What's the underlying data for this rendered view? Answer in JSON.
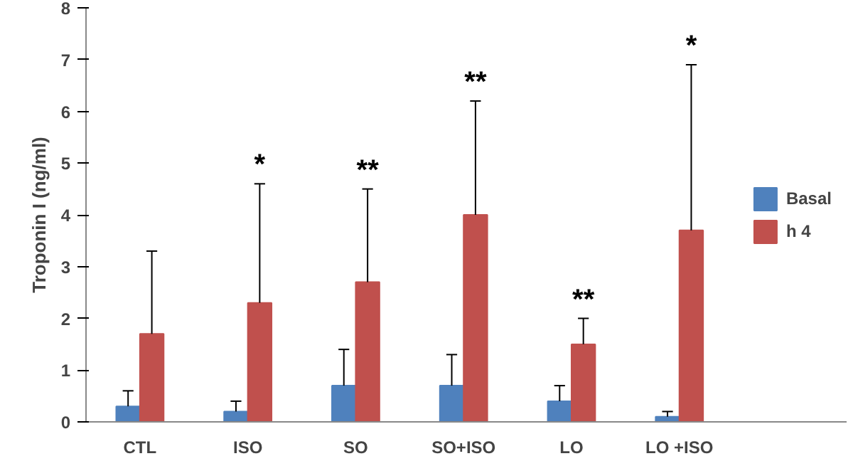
{
  "chart_data": {
    "type": "bar",
    "ylabel": "Troponin I (ng/ml)",
    "categories": [
      "CTL",
      "ISO",
      "SO",
      "SO+ISO",
      "LO",
      "LO +ISO"
    ],
    "series": [
      {
        "name": "Basal",
        "color": "#4f81bd",
        "values": [
          0.3,
          0.2,
          0.7,
          0.7,
          0.4,
          0.1
        ],
        "errors": [
          [
            0.3,
            0.6
          ],
          [
            0.2,
            0.4
          ],
          [
            0.7,
            1.4
          ],
          [
            0.7,
            1.3
          ],
          [
            0.4,
            0.7
          ],
          [
            0.1,
            0.2
          ]
        ]
      },
      {
        "name": "h 4",
        "color": "#c0504d",
        "values": [
          1.7,
          2.3,
          2.7,
          4.0,
          1.5,
          3.7
        ],
        "errors": [
          [
            1.7,
            3.3
          ],
          [
            2.3,
            4.6
          ],
          [
            2.7,
            4.5
          ],
          [
            4.0,
            6.2
          ],
          [
            1.5,
            2.0
          ],
          [
            3.7,
            6.9
          ]
        ]
      }
    ],
    "ylim": [
      0,
      8
    ],
    "yticks": [
      0,
      1,
      2,
      3,
      4,
      5,
      6,
      7,
      8
    ],
    "grid": false,
    "legend": "right",
    "annotations": [
      {
        "text": "*",
        "x": "ISO",
        "y": 4.6
      },
      {
        "text": "**",
        "x": "SO",
        "y": 4.5
      },
      {
        "text": "**",
        "x": "SO+ISO",
        "y": 6.2
      },
      {
        "text": "**",
        "x": "LO",
        "y": 2.0
      },
      {
        "text": "*",
        "x": "LO +ISO",
        "y": 6.9
      }
    ]
  }
}
